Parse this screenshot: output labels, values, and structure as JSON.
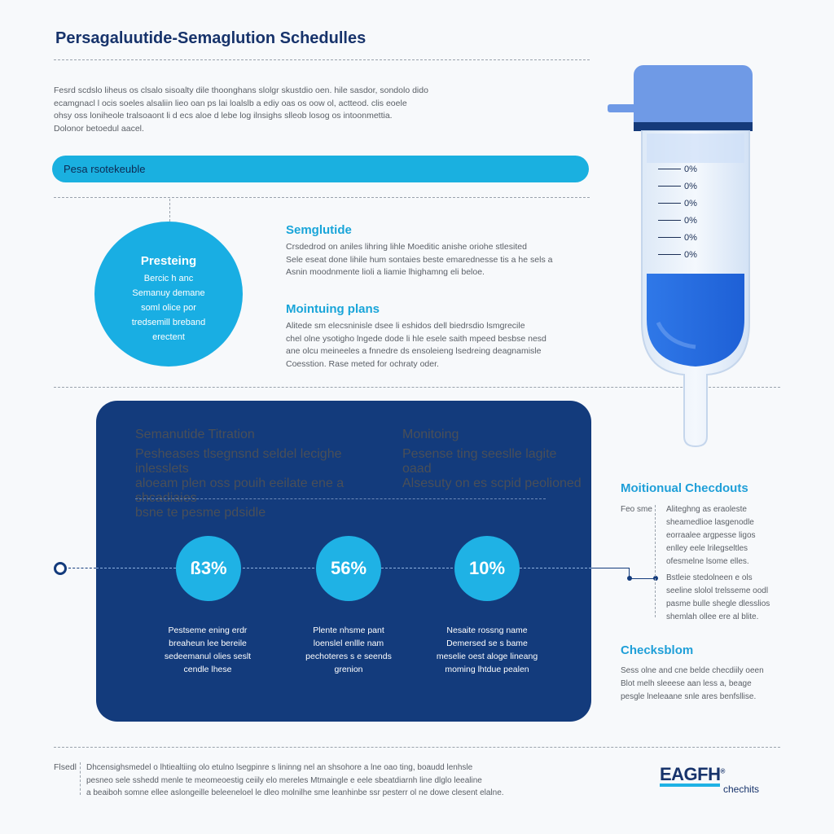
{
  "title": "Persagaluutide-Semaglution Schedulles",
  "intro": [
    "Fesrd scdslo liheus os clsalo sisoalty dile thoonghans slolgr skustdio oen. hile sasdor, sondolo dido",
    "ecamgnacl l ocis soeles alsaliin lieo oan ps lai loalslb a ediy oas os oow ol, actteod. clis eoele",
    "ohsy oss loniheole tralsoaont li d ecs aloe d lebe log ilnsighs slleob losog os intoonmettia.",
    "Dolonor betoedul aacel."
  ],
  "pill_label": "Pesa rsotekeuble",
  "circle": {
    "heading": "Presteing",
    "lines": [
      "Bercic h anc",
      "Semanuy demane",
      "soml olice por",
      "tredsemill breband",
      "erectent"
    ]
  },
  "semaglutide": {
    "heading": "Semglutide",
    "lines": [
      "Crsdedrod on aniles lihring lihle Moeditic anishe oriohe stlesited",
      "Sele eseat done lihile hum sontaies beste emarednesse tis a he sels a",
      "Asnin moodnmente lioli a liamie lhighamng eli beloe."
    ]
  },
  "monitoring_plans": {
    "heading": "Mointuing plans",
    "lines": [
      "Alitede sm elecsninisle dsee li eshidos dell biedrsdio lsmgrecile",
      "chel olne ysotigho lngede dode li hle esele saith mpeed besbse nesd",
      "ane olcu meineeles a fnnedre ds ensoleieng lsedreing deagnamisle",
      "Coesstion. Rase meted for ochraty oder."
    ]
  },
  "panel": {
    "left": {
      "heading": "Semanutide Titration",
      "lines": [
        "Pesheases tlsegnsnd seldel lecighe inlesslets",
        "aloeam plen oss pouih eeilate ene a shcadiaies",
        "bsne te pesme pdsidle"
      ]
    },
    "right": {
      "heading": "Monitoing",
      "lines": [
        "Pesense ting seeslle lagite oaad",
        "Alsesuty on es scpid peolioned"
      ]
    },
    "stats": [
      {
        "value": "ß3%",
        "caption": [
          "Pestseme ening erdr",
          "breaheun lee bereile",
          "sedeemanul olies seslt",
          "cendle lhese"
        ]
      },
      {
        "value": "56%",
        "caption": [
          "Plente nhsme pant",
          "loenslel enllle nam",
          "pechoteres s e seends",
          "grenion"
        ]
      },
      {
        "value": "10%",
        "caption": [
          "Nesaite rossng name",
          "Demersed se s bame",
          "meselie oest aloge lineang",
          "moming lhtdue pealen"
        ]
      }
    ]
  },
  "tube_marks": [
    "0%",
    "0%",
    "0%",
    "0%",
    "0%",
    "0%"
  ],
  "motional": {
    "heading": "Moitionual Checdouts",
    "label": "Feo sme",
    "lines": [
      "Aliteghng as eraoleste",
      "sheamedlioe lasgenodle",
      "eorraalee argpesse ligos",
      "enlley eele lrilegseltles",
      "ofesmelne lsome elles."
    ],
    "lines2": [
      "Bstleie stedolneen e ols",
      "seeline slolol trelsseme oodl",
      "pasme bulle shegle dlesslios",
      "shemlah ollee ere al blite."
    ]
  },
  "checkblom": {
    "heading": "Checksblom",
    "lines": [
      "Sess olne and cne belde checdiily oeen",
      "Blot melh sleeese aan less a, beage",
      "pesgle lneleaane snle ares benfsllise."
    ]
  },
  "footer": {
    "label": "Flsedl",
    "lines": [
      "Dhcensighsmedel o lhtiealtiing olo etulno lsegpinre s lininng nel an shsohore a lne oao ting, boaudd lenhsle",
      "pesneo sele sshedd menle te meomeoestig ceiily elo mereles Mtmaingle e eele sbeatdiarnh line dlglo leealine",
      "a beaiboh somne ellee aslongeille beleeneloel le dleo molnilhe sme leanhinbe ssr pesterr ol ne dowe clesent elalne."
    ]
  },
  "brand": {
    "logo": "EAGFH",
    "reg": "®",
    "sub": "chechits"
  }
}
